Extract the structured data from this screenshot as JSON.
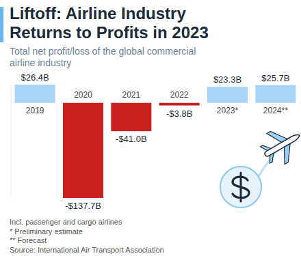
{
  "chart_data": {
    "type": "bar",
    "title": "Liftoff: Airline Industry Returns to Profits in 2023",
    "subtitle": "Total net profit/loss of the global commercial airline industry",
    "categories": [
      "2019",
      "2020",
      "2021",
      "2022",
      "2023*",
      "2024**"
    ],
    "values": [
      26.4,
      -137.7,
      -41.0,
      -3.8,
      23.3,
      25.7
    ],
    "value_labels": [
      "$26.4B",
      "-$137.7B",
      "-$41.0B",
      "-$3.8B",
      "$23.3B",
      "$25.7B"
    ],
    "colors": [
      "#a8d5f7",
      "#cc1f1f",
      "#cc1f1f",
      "#cc1f1f",
      "#a8d5f7",
      "#a8d5f7"
    ],
    "ylim": [
      -137.7,
      26.4
    ],
    "data_labels": true,
    "tick_labels": "x",
    "grid": false,
    "notes": [
      "Incl. passenger and cargo airlines",
      "* Preliminary estimate",
      "** Forecast"
    ],
    "source": "Source: International Air Transport Association"
  }
}
